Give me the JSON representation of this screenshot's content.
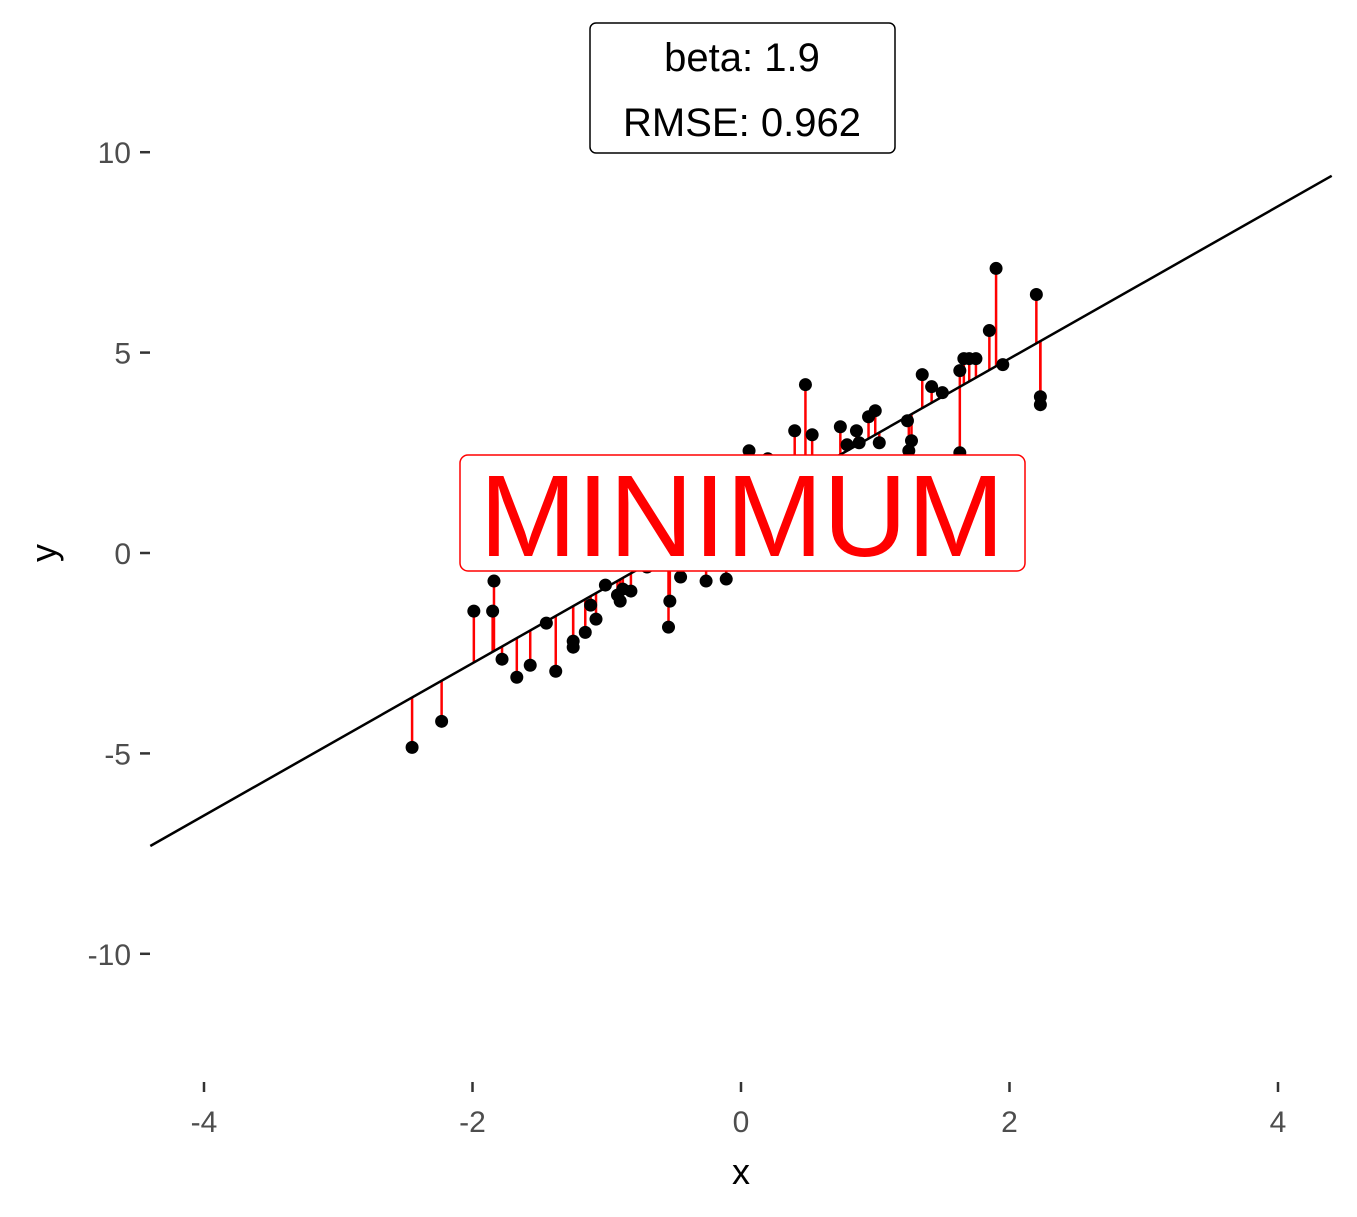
{
  "chart_data": {
    "type": "scatter",
    "xlabel": "x",
    "ylabel": "y",
    "xlim": [
      -4.4,
      4.4
    ],
    "ylim": [
      -13,
      12.5
    ],
    "x_ticks": [
      -4,
      -2,
      0,
      2,
      4
    ],
    "y_ticks": [
      -10,
      -5,
      0,
      5,
      10
    ],
    "x_tick_labels": [
      "-4",
      "-2",
      "0",
      "2",
      "4"
    ],
    "y_tick_labels": [
      "-10",
      "-5",
      "0",
      "5",
      "10"
    ],
    "grid": false,
    "legend": "none",
    "fit_line": {
      "slope": 1.9,
      "intercept": 1.05
    },
    "annotation": {
      "beta_label": "beta: 1.9",
      "rmse_label": "RMSE: 0.962"
    },
    "banner": "MINIMUM",
    "colors": {
      "points": "#000000",
      "residuals": "#ff0000",
      "line": "#000000",
      "banner": "#ff0000"
    },
    "points": [
      {
        "x": -2.45,
        "y": -4.85
      },
      {
        "x": -2.23,
        "y": -4.2
      },
      {
        "x": -1.99,
        "y": -1.45
      },
      {
        "x": -1.85,
        "y": -1.45
      },
      {
        "x": -1.84,
        "y": -0.7
      },
      {
        "x": -1.78,
        "y": -2.65
      },
      {
        "x": -1.67,
        "y": -3.1
      },
      {
        "x": -1.57,
        "y": -2.8
      },
      {
        "x": -1.45,
        "y": -1.75
      },
      {
        "x": -1.38,
        "y": -2.95
      },
      {
        "x": -1.25,
        "y": -2.35
      },
      {
        "x": -1.25,
        "y": -2.2
      },
      {
        "x": -1.16,
        "y": -1.98
      },
      {
        "x": -1.12,
        "y": -1.3
      },
      {
        "x": -1.08,
        "y": -1.65
      },
      {
        "x": -1.01,
        "y": -0.8
      },
      {
        "x": -0.92,
        "y": -1.05
      },
      {
        "x": -0.9,
        "y": -1.2
      },
      {
        "x": -0.88,
        "y": -0.9
      },
      {
        "x": -0.82,
        "y": -0.95
      },
      {
        "x": -0.7,
        "y": -0.35
      },
      {
        "x": -0.54,
        "y": -1.85
      },
      {
        "x": -0.53,
        "y": -1.2
      },
      {
        "x": -0.45,
        "y": -0.6
      },
      {
        "x": -0.26,
        "y": -0.7
      },
      {
        "x": -0.11,
        "y": -0.65
      },
      {
        "x": 0.06,
        "y": 2.55
      },
      {
        "x": 0.2,
        "y": 2.35
      },
      {
        "x": 0.4,
        "y": 3.05
      },
      {
        "x": 0.48,
        "y": 4.2
      },
      {
        "x": 0.53,
        "y": 2.95
      },
      {
        "x": 0.74,
        "y": 3.15
      },
      {
        "x": 0.79,
        "y": 2.7
      },
      {
        "x": 0.86,
        "y": 3.05
      },
      {
        "x": 0.88,
        "y": 2.75
      },
      {
        "x": 0.95,
        "y": 3.4
      },
      {
        "x": 1.0,
        "y": 3.55
      },
      {
        "x": 1.03,
        "y": 2.75
      },
      {
        "x": 1.24,
        "y": 3.3
      },
      {
        "x": 1.25,
        "y": 2.55
      },
      {
        "x": 1.27,
        "y": 2.8
      },
      {
        "x": 1.35,
        "y": 4.45
      },
      {
        "x": 1.42,
        "y": 4.15
      },
      {
        "x": 1.5,
        "y": 4.0
      },
      {
        "x": 1.63,
        "y": 4.55
      },
      {
        "x": 1.63,
        "y": 2.5
      },
      {
        "x": 1.66,
        "y": 4.85
      },
      {
        "x": 1.7,
        "y": 4.85
      },
      {
        "x": 1.75,
        "y": 4.85
      },
      {
        "x": 1.85,
        "y": 5.55
      },
      {
        "x": 1.9,
        "y": 7.1
      },
      {
        "x": 1.95,
        "y": 4.7
      },
      {
        "x": 2.2,
        "y": 6.45
      },
      {
        "x": 2.23,
        "y": 3.9
      },
      {
        "x": 2.23,
        "y": 3.7
      }
    ]
  }
}
